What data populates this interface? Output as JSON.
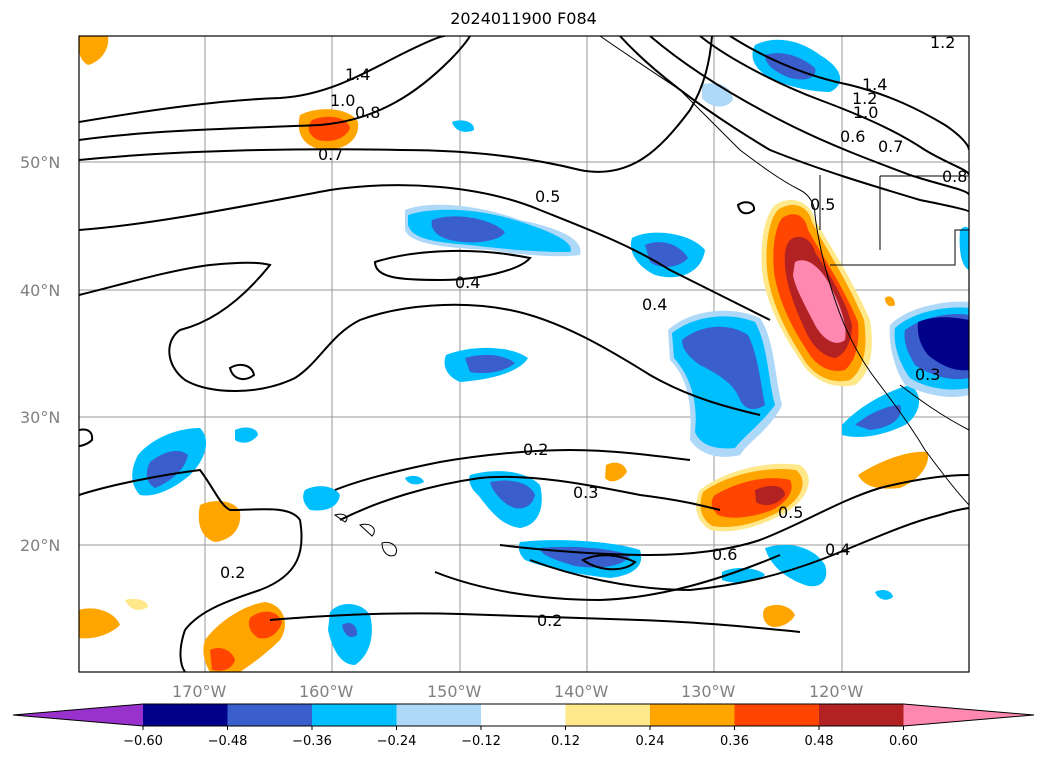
{
  "title": "2024011900 F084",
  "map": {
    "lat_labels": [
      "50°N",
      "40°N",
      "30°N",
      "20°N"
    ],
    "lon_labels": [
      "170°W",
      "160°W",
      "150°W",
      "140°W",
      "130°W",
      "120°W"
    ],
    "contour_labels": [
      "1.4",
      "1.0",
      "0.8",
      "0.7",
      "0.5",
      "0.4",
      "0.4",
      "0.2",
      "0.3",
      "0.5",
      "0.6",
      "0.4",
      "0.2",
      "0.2",
      "1.4",
      "1.2",
      "1.0",
      "0.6",
      "0.7",
      "0.8",
      "0.5",
      "0.3",
      "1.2"
    ]
  },
  "colorbar": {
    "ticks": [
      "−0.60",
      "−0.48",
      "−0.36",
      "−0.24",
      "−0.12",
      "0.12",
      "0.24",
      "0.36",
      "0.48",
      "0.60"
    ],
    "colors": [
      "#9932cc",
      "#00008b",
      "#3a5fcd",
      "#00bfff",
      "#add8f7",
      "#ffffff",
      "#ffe88a",
      "#ffa500",
      "#ff4500",
      "#b22222",
      "#ff88b0"
    ]
  }
}
